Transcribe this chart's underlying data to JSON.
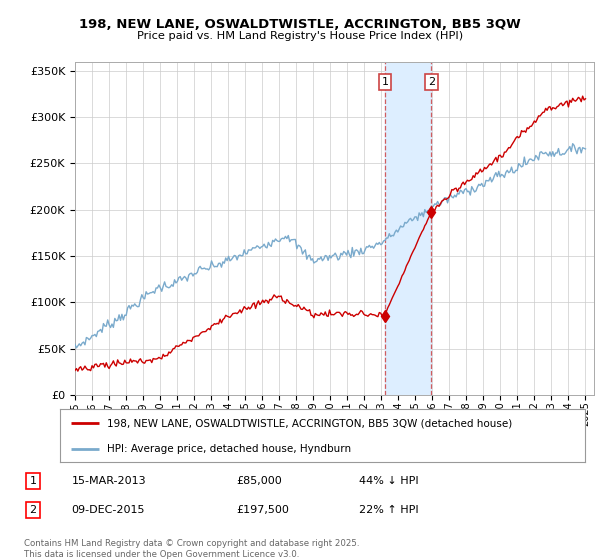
{
  "title": "198, NEW LANE, OSWALDTWISTLE, ACCRINGTON, BB5 3QW",
  "subtitle": "Price paid vs. HM Land Registry's House Price Index (HPI)",
  "legend_line1": "198, NEW LANE, OSWALDTWISTLE, ACCRINGTON, BB5 3QW (detached house)",
  "legend_line2": "HPI: Average price, detached house, Hyndburn",
  "sale1_date": "15-MAR-2013",
  "sale1_price": 85000,
  "sale1_hpi_text": "44% ↓ HPI",
  "sale2_date": "09-DEC-2015",
  "sale2_price": 197500,
  "sale2_hpi_text": "22% ↑ HPI",
  "sale1_year": 2013.21,
  "sale2_year": 2015.94,
  "red_color": "#cc0000",
  "blue_color": "#7aaacc",
  "highlight_color": "#ddeeff",
  "ylim": [
    0,
    360000
  ],
  "yticks": [
    0,
    50000,
    100000,
    150000,
    200000,
    250000,
    300000,
    350000
  ],
  "footer": "Contains HM Land Registry data © Crown copyright and database right 2025.\nThis data is licensed under the Open Government Licence v3.0.",
  "background_color": "#ffffff",
  "grid_color": "#cccccc"
}
